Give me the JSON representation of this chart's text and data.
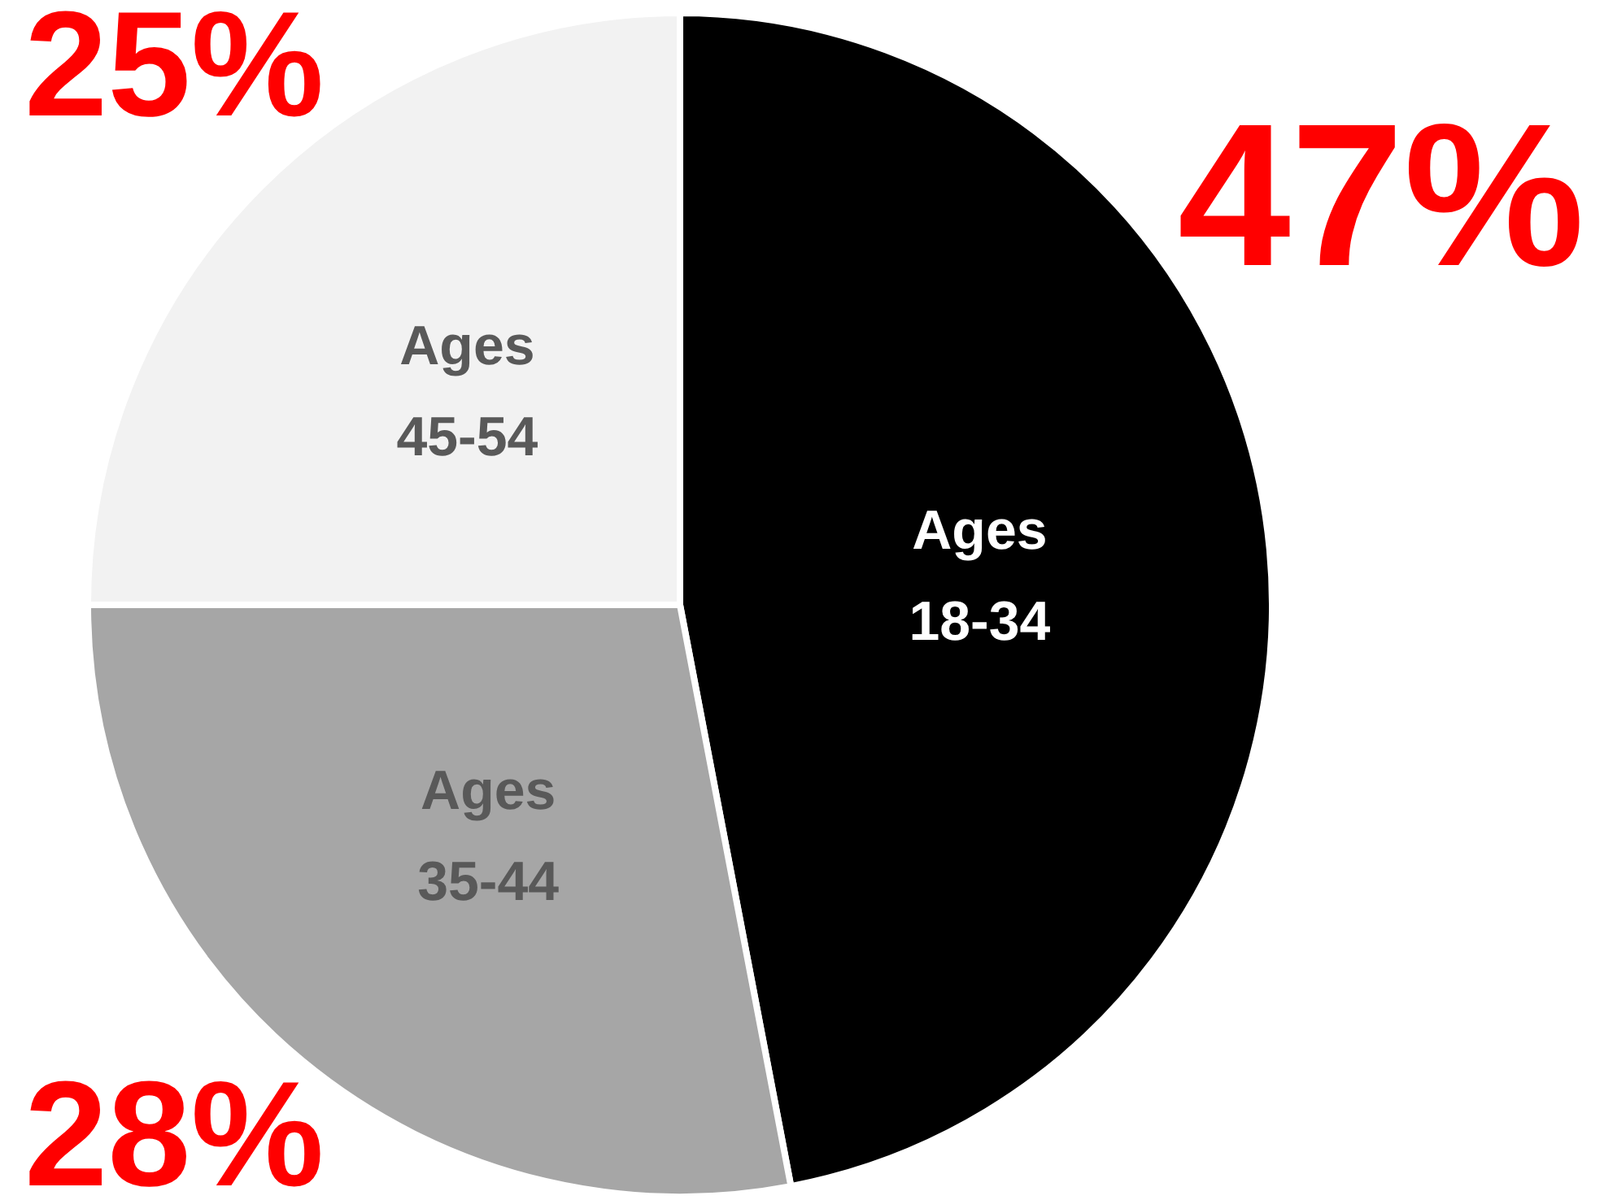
{
  "chart_data": {
    "type": "pie",
    "categories": [
      "Ages\n18-34",
      "Ages\n35-44",
      "Ages\n45-54"
    ],
    "values": [
      47,
      28,
      25
    ],
    "colors": [
      "#000000",
      "#a6a6a6",
      "#f2f2f2"
    ],
    "value_labels": [
      "47%",
      "28%",
      "25%"
    ],
    "legend": false
  }
}
